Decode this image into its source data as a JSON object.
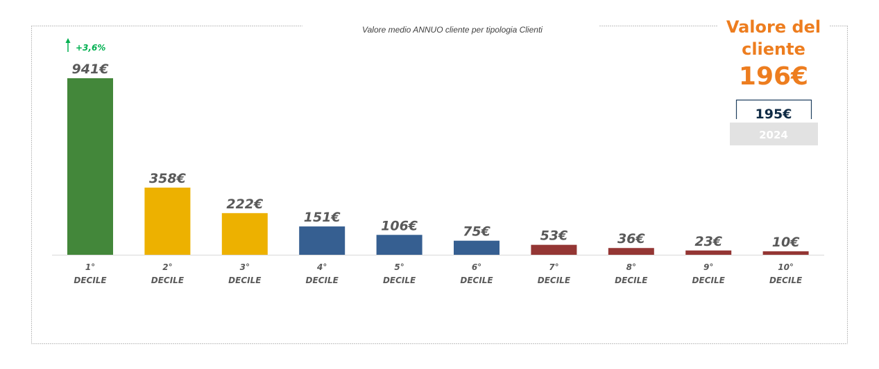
{
  "chart_data": {
    "type": "bar",
    "title": "Valore medio ANNUO cliente per tipologia Clienti",
    "categories": [
      {
        "line1": "1°",
        "line2": "DECILE"
      },
      {
        "line1": "2°",
        "line2": "DECILE"
      },
      {
        "line1": "3°",
        "line2": "DECILE"
      },
      {
        "line1": "4°",
        "line2": "DECILE"
      },
      {
        "line1": "5°",
        "line2": "DECILE"
      },
      {
        "line1": "6°",
        "line2": "DECILE"
      },
      {
        "line1": "7°",
        "line2": "DECILE"
      },
      {
        "line1": "8°",
        "line2": "DECILE"
      },
      {
        "line1": "9°",
        "line2": "DECILE"
      },
      {
        "line1": "10°",
        "line2": "DECILE"
      }
    ],
    "values": [
      941,
      358,
      222,
      151,
      106,
      75,
      53,
      36,
      23,
      10
    ],
    "labels": [
      "941€",
      "358€",
      "222€",
      "151€",
      "106€",
      "75€",
      "53€",
      "36€",
      "23€",
      "10€"
    ],
    "colors": [
      "#43873a",
      "#edb100",
      "#edb100",
      "#365f91",
      "#365f91",
      "#365f91",
      "#943634",
      "#943634",
      "#943634",
      "#943634"
    ],
    "ylim": [
      0,
      941
    ],
    "grid": false,
    "xlabel": "",
    "ylabel": "",
    "annotation": {
      "text": "+3,6%",
      "color": "#00b050",
      "icon": "arrow-up-icon"
    }
  },
  "kpi": {
    "title_line1": "Valore del",
    "title_line2": "cliente",
    "value": "196€",
    "previous_value": "195€",
    "previous_year": "2024",
    "color": "#ed7d1f"
  }
}
